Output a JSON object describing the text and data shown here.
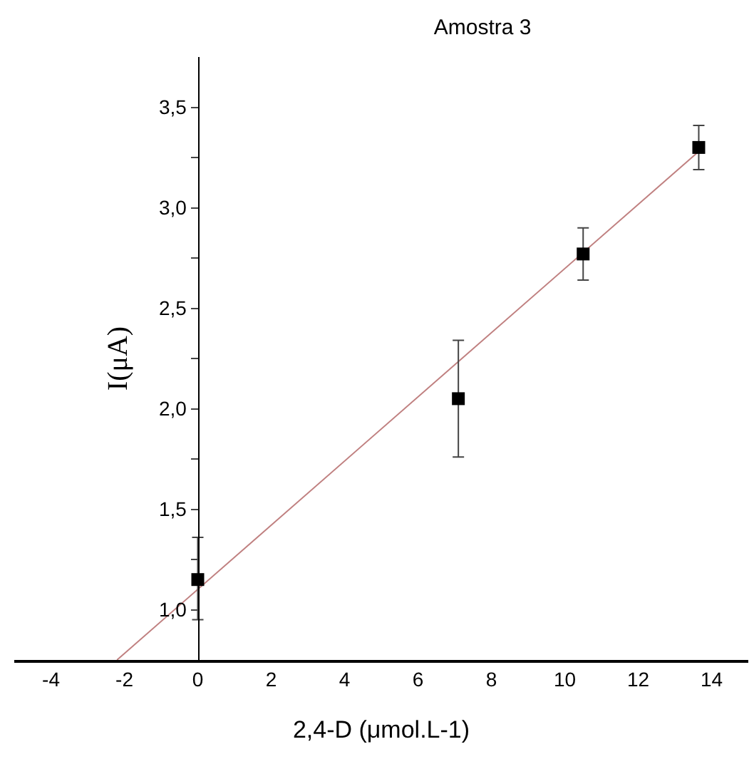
{
  "chart_data": {
    "type": "scatter",
    "title": "Amostra 3",
    "xlabel": "2,4-D (μmol.L-1)",
    "ylabel": "I(μA)",
    "xlim": [
      -5,
      15
    ],
    "xticks": [
      -4,
      -2,
      0,
      2,
      4,
      6,
      8,
      10,
      12,
      14
    ],
    "ylim": [
      0.75,
      3.75
    ],
    "yticks": [
      {
        "value": 1,
        "label": "1,0"
      },
      {
        "value": 1.25,
        "label": null
      },
      {
        "value": 1.5,
        "label": "1,5"
      },
      {
        "value": 1.75,
        "label": null
      },
      {
        "value": 2,
        "label": "2,0"
      },
      {
        "value": 2.25,
        "label": null
      },
      {
        "value": 2.5,
        "label": "2,5"
      },
      {
        "value": 2.75,
        "label": null
      },
      {
        "value": 3,
        "label": "3,0"
      },
      {
        "value": 3.25,
        "label": null
      },
      {
        "value": 3.5,
        "label": "3,5"
      }
    ],
    "grid": false,
    "series": [
      {
        "marker": "square",
        "color": "#000000",
        "x": [
          0,
          7.1,
          10.5,
          13.65
        ],
        "values": [
          1.15,
          2.05,
          2.77,
          3.3
        ],
        "errors": [
          [
            0.95,
            1.36
          ],
          [
            1.76,
            2.34
          ],
          [
            2.64,
            2.9
          ],
          [
            3.19,
            3.41
          ]
        ]
      },
      {
        "type": "line",
        "color": "#c08080",
        "x": [
          -2.2,
          13.65
        ],
        "values": [
          0.75,
          3.28
        ]
      }
    ]
  }
}
